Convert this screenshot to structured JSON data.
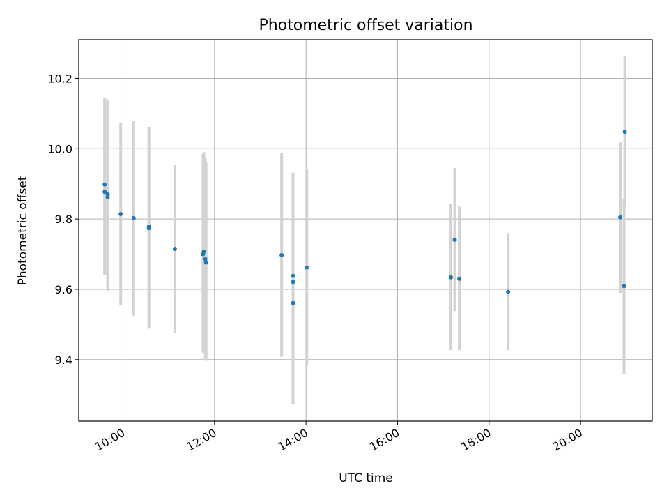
{
  "chart_data": {
    "type": "scatter",
    "title": "Photometric offset variation",
    "xlabel": "UTC time",
    "ylabel": "Photometric offset",
    "xlim": [
      "09:02",
      "21:34"
    ],
    "ylim": [
      9.225,
      10.31
    ],
    "x_ticks": [
      "10:00",
      "12:00",
      "14:00",
      "16:00",
      "18:00",
      "20:00"
    ],
    "y_ticks": [
      9.4,
      9.6,
      9.8,
      10.0,
      10.2
    ],
    "grid": true,
    "marker_color": "#1f77b4",
    "errorbar_color": "#d3d3d3",
    "points": [
      {
        "x": "09:36",
        "y": 9.898,
        "ymin": 9.64,
        "ymax": 10.145
      },
      {
        "x": "09:36",
        "y": 9.877,
        "ymin": 9.64,
        "ymax": 10.145
      },
      {
        "x": "09:40",
        "y": 9.87,
        "ymin": 9.595,
        "ymax": 10.14
      },
      {
        "x": "09:40",
        "y": 9.862,
        "ymin": 9.595,
        "ymax": 10.14
      },
      {
        "x": "09:57",
        "y": 9.814,
        "ymin": 9.555,
        "ymax": 10.072
      },
      {
        "x": "10:14",
        "y": 9.803,
        "ymin": 9.525,
        "ymax": 10.08
      },
      {
        "x": "10:34",
        "y": 9.778,
        "ymin": 9.488,
        "ymax": 10.062
      },
      {
        "x": "10:34",
        "y": 9.774,
        "ymin": 9.488,
        "ymax": 10.062
      },
      {
        "x": "11:08",
        "y": 9.715,
        "ymin": 9.475,
        "ymax": 9.955
      },
      {
        "x": "11:45",
        "y": 9.7,
        "ymin": 9.42,
        "ymax": 9.985
      },
      {
        "x": "11:46",
        "y": 9.707,
        "ymin": 9.42,
        "ymax": 9.99
      },
      {
        "x": "11:48",
        "y": 9.686,
        "ymin": 9.397,
        "ymax": 9.975
      },
      {
        "x": "11:49",
        "y": 9.676,
        "ymin": 9.397,
        "ymax": 9.96
      },
      {
        "x": "13:28",
        "y": 9.697,
        "ymin": 9.408,
        "ymax": 9.988
      },
      {
        "x": "13:43",
        "y": 9.638,
        "ymin": 9.345,
        "ymax": 9.932
      },
      {
        "x": "13:43",
        "y": 9.621,
        "ymin": 9.33,
        "ymax": 9.915
      },
      {
        "x": "13:43",
        "y": 9.561,
        "ymin": 9.273,
        "ymax": 9.85
      },
      {
        "x": "14:01",
        "y": 9.662,
        "ymin": 9.383,
        "ymax": 9.943
      },
      {
        "x": "17:10",
        "y": 9.634,
        "ymin": 9.427,
        "ymax": 9.843
      },
      {
        "x": "17:15",
        "y": 9.741,
        "ymin": 9.538,
        "ymax": 9.945
      },
      {
        "x": "17:21",
        "y": 9.63,
        "ymin": 9.427,
        "ymax": 9.835
      },
      {
        "x": "18:25",
        "y": 9.593,
        "ymin": 9.427,
        "ymax": 9.76
      },
      {
        "x": "20:52",
        "y": 9.805,
        "ymin": 9.59,
        "ymax": 10.018
      },
      {
        "x": "20:57",
        "y": 9.609,
        "ymin": 9.36,
        "ymax": 9.858
      },
      {
        "x": "20:58",
        "y": 10.048,
        "ymin": 9.835,
        "ymax": 10.262
      }
    ]
  }
}
